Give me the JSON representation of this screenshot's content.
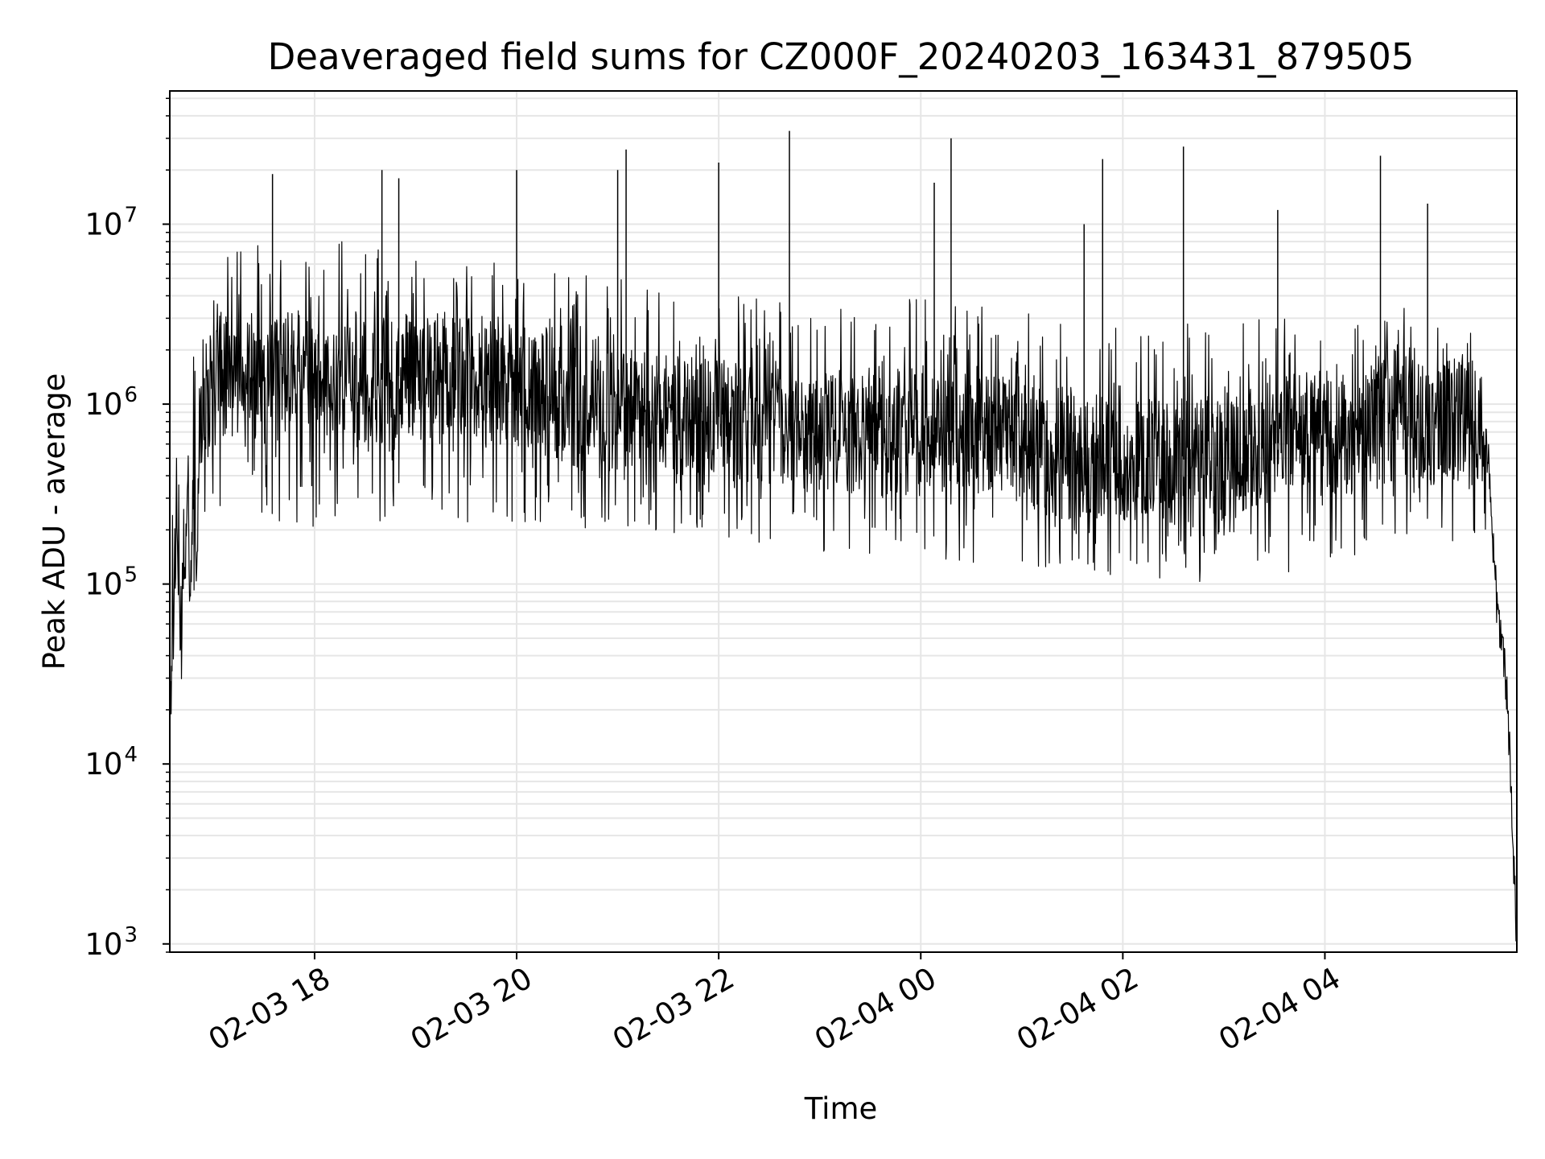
{
  "chart_data": {
    "type": "line",
    "title": "Deaveraged field sums for CZ000F_20240203_163431_879505",
    "xlabel": "Time",
    "ylabel": "Peak ADU - average",
    "yscale": "log",
    "ylim": [
      900,
      55000000
    ],
    "xlim": [
      "2024-02-03T16:34",
      "2024-02-04T05:54"
    ],
    "grid": true,
    "line_color": "#000000",
    "grid_color": "#e6e6e6",
    "x_ticks": [
      {
        "value": "2024-02-03T18:00",
        "label": "02-03 18"
      },
      {
        "value": "2024-02-03T20:00",
        "label": "02-03 20"
      },
      {
        "value": "2024-02-03T22:00",
        "label": "02-03 22"
      },
      {
        "value": "2024-02-04T00:00",
        "label": "02-04 00"
      },
      {
        "value": "2024-02-04T02:00",
        "label": "02-04 02"
      },
      {
        "value": "2024-02-04T04:00",
        "label": "02-04 04"
      }
    ],
    "y_ticks": [
      {
        "value": 1000,
        "base": "10",
        "exp": "3"
      },
      {
        "value": 10000,
        "base": "10",
        "exp": "4"
      },
      {
        "value": 100000,
        "base": "10",
        "exp": "5"
      },
      {
        "value": 1000000,
        "base": "10",
        "exp": "6"
      },
      {
        "value": 10000000,
        "base": "10",
        "exp": "7"
      }
    ],
    "series": [
      {
        "x": [
          "2024-02-03T16:34",
          "2024-02-03T16:36",
          "2024-02-03T16:38",
          "2024-02-03T16:40",
          "2024-02-03T16:42",
          "2024-02-03T16:44",
          "2024-02-03T16:46",
          "2024-02-03T16:48",
          "2024-02-03T16:50",
          "2024-02-03T16:52",
          "2024-02-03T16:55",
          "2024-02-03T17:00",
          "2024-02-03T17:10",
          "2024-02-03T17:20",
          "2024-02-03T17:30",
          "2024-02-03T17:40",
          "2024-02-03T17:50",
          "2024-02-03T18:00",
          "2024-02-03T18:15",
          "2024-02-03T18:30",
          "2024-02-03T18:45",
          "2024-02-03T19:00",
          "2024-02-03T19:15",
          "2024-02-03T19:30",
          "2024-02-03T19:45",
          "2024-02-03T20:00",
          "2024-02-03T20:15",
          "2024-02-03T20:30",
          "2024-02-03T20:45",
          "2024-02-03T21:00",
          "2024-02-03T21:15",
          "2024-02-03T21:30",
          "2024-02-03T21:45",
          "2024-02-03T22:00",
          "2024-02-03T22:15",
          "2024-02-03T22:30",
          "2024-02-03T22:45",
          "2024-02-03T23:00",
          "2024-02-03T23:15",
          "2024-02-03T23:30",
          "2024-02-03T23:45",
          "2024-02-04T00:00",
          "2024-02-04T00:15",
          "2024-02-04T00:30",
          "2024-02-04T00:45",
          "2024-02-04T01:00",
          "2024-02-04T01:15",
          "2024-02-04T01:30",
          "2024-02-04T01:45",
          "2024-02-04T02:00",
          "2024-02-04T02:15",
          "2024-02-04T02:30",
          "2024-02-04T02:45",
          "2024-02-04T03:00",
          "2024-02-04T03:15",
          "2024-02-04T03:30",
          "2024-02-04T03:45",
          "2024-02-04T04:00",
          "2024-02-04T04:15",
          "2024-02-04T04:30",
          "2024-02-04T04:45",
          "2024-02-04T05:00",
          "2024-02-04T05:15",
          "2024-02-04T05:30",
          "2024-02-04T05:37",
          "2024-02-04T05:40",
          "2024-02-04T05:43",
          "2024-02-04T05:46",
          "2024-02-04T05:48",
          "2024-02-04T05:50",
          "2024-02-04T05:52",
          "2024-02-04T05:54"
        ],
        "y": [
          30000,
          60000,
          250000,
          40000,
          100000,
          400000,
          70000,
          600000,
          120000,
          900000,
          700000,
          2000000,
          1200000,
          1500000,
          1300000,
          1400000,
          1600000,
          1500000,
          1400000,
          1300000,
          1400000,
          1500000,
          1300000,
          1400000,
          1300000,
          1200000,
          1100000,
          1000000,
          900000,
          950000,
          900000,
          850000,
          900000,
          850000,
          800000,
          800000,
          750000,
          700000,
          700000,
          650000,
          700000,
          700000,
          700000,
          750000,
          700000,
          650000,
          550000,
          500000,
          550000,
          500000,
          520000,
          500000,
          480000,
          500000,
          550000,
          600000,
          650000,
          700000,
          700000,
          750000,
          800000,
          750000,
          800000,
          900000,
          500000,
          150000,
          60000,
          40000,
          25000,
          10000,
          3000,
          1000
        ]
      }
    ],
    "spike_envelope": {
      "x": [
        "2024-02-03T16:34",
        "2024-02-03T17:00",
        "2024-02-03T18:00",
        "2024-02-03T19:00",
        "2024-02-03T20:00",
        "2024-02-03T21:00",
        "2024-02-03T22:00",
        "2024-02-03T23:00",
        "2024-02-04T00:00",
        "2024-02-04T01:00",
        "2024-02-04T02:00",
        "2024-02-04T03:00",
        "2024-02-04T04:00",
        "2024-02-04T05:00",
        "2024-02-04T05:36"
      ],
      "high": [
        400000,
        7000000,
        9000000,
        7000000,
        6000000,
        5000000,
        4000000,
        4000000,
        4000000,
        3500000,
        3000000,
        3000000,
        3000000,
        4000000,
        5000000
      ],
      "low": [
        25000,
        250000,
        200000,
        200000,
        200000,
        200000,
        180000,
        150000,
        140000,
        120000,
        110000,
        100000,
        120000,
        150000,
        200000
      ]
    },
    "notable_peaks": [
      {
        "x": "2024-02-03T22:42",
        "y": 33000000
      },
      {
        "x": "2024-02-04T00:18",
        "y": 30000000
      },
      {
        "x": "2024-02-04T02:36",
        "y": 27000000
      },
      {
        "x": "2024-02-03T21:05",
        "y": 26000000
      },
      {
        "x": "2024-02-04T04:33",
        "y": 24000000
      },
      {
        "x": "2024-02-04T01:48",
        "y": 23000000
      },
      {
        "x": "2024-02-03T22:00",
        "y": 22000000
      },
      {
        "x": "2024-02-03T18:40",
        "y": 20000000
      },
      {
        "x": "2024-02-03T20:00",
        "y": 20000000
      },
      {
        "x": "2024-02-03T17:35",
        "y": 19000000
      },
      {
        "x": "2024-02-03T18:50",
        "y": 18000000
      },
      {
        "x": "2024-02-03T21:00",
        "y": 20000000
      },
      {
        "x": "2024-02-04T00:08",
        "y": 17000000
      },
      {
        "x": "2024-02-04T01:37",
        "y": 10000000
      },
      {
        "x": "2024-02-04T03:32",
        "y": 12000000
      },
      {
        "x": "2024-02-04T05:01",
        "y": 13000000
      }
    ]
  }
}
